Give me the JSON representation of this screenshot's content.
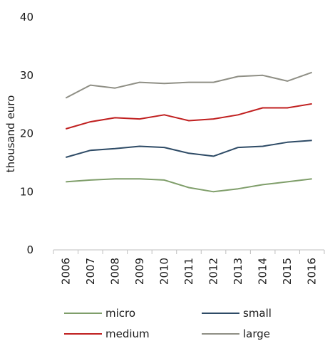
{
  "chart_data": {
    "type": "line",
    "title": "",
    "xlabel": "",
    "ylabel": "thousand euro",
    "ylim": [
      0,
      40
    ],
    "yticks": [
      0,
      10,
      20,
      30,
      40
    ],
    "grid": false,
    "legend_position": "bottom",
    "x": [
      "2006",
      "2007",
      "2008",
      "2009",
      "2010",
      "2011",
      "2012",
      "2013",
      "2014",
      "2015",
      "2016"
    ],
    "series": [
      {
        "name": "micro",
        "color": "#7f9e6a",
        "values": [
          11.7,
          12.0,
          12.2,
          12.2,
          12.0,
          10.7,
          10.0,
          10.5,
          11.2,
          11.7,
          12.2
        ]
      },
      {
        "name": "small",
        "color": "#2e4b66",
        "values": [
          15.9,
          17.1,
          17.4,
          17.8,
          17.6,
          16.6,
          16.1,
          17.6,
          17.8,
          18.5,
          18.8
        ]
      },
      {
        "name": "medium",
        "color": "#c01f1f",
        "values": [
          20.8,
          22.0,
          22.7,
          22.5,
          23.2,
          22.2,
          22.5,
          23.2,
          24.4,
          24.4,
          25.1
        ]
      },
      {
        "name": "large",
        "color": "#8f8f85",
        "values": [
          26.1,
          28.3,
          27.8,
          28.8,
          28.6,
          28.8,
          28.8,
          29.8,
          30.0,
          29.0,
          30.5
        ]
      }
    ]
  }
}
